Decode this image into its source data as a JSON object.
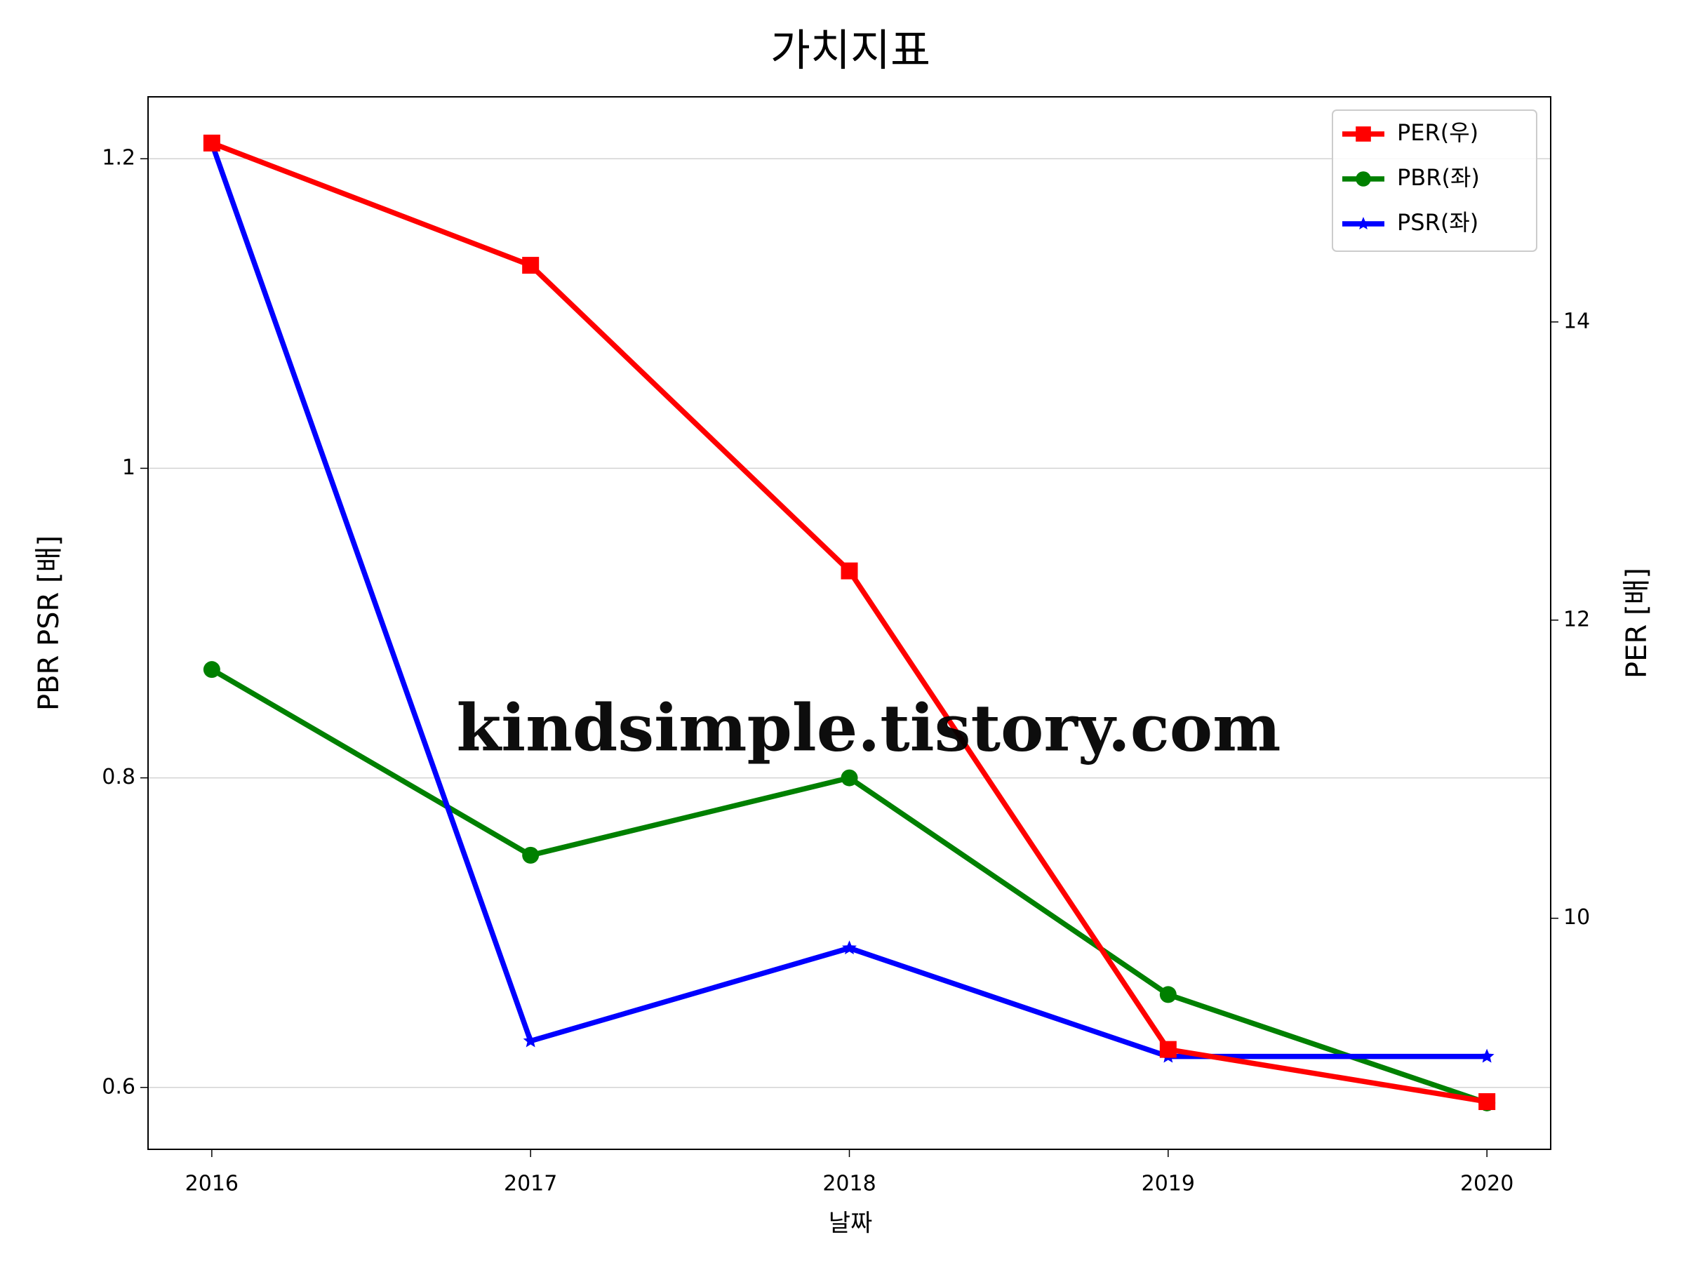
{
  "chart_data": {
    "type": "line",
    "title": "가치지표",
    "x_label": "날짜",
    "y_label": "PBR PSR [배]",
    "y2_label": "PER [배]",
    "y_label_color": "#008000",
    "y2_label_color": "#ff0000",
    "x": [
      2016,
      2017,
      2018,
      2019,
      2020
    ],
    "xlim": [
      2015.8,
      2020.2
    ],
    "xticks": [
      2016,
      2017,
      2018,
      2019,
      2020
    ],
    "ylim": [
      0.56,
      1.24
    ],
    "yticks": [
      0.6,
      0.8,
      1.0,
      1.2
    ],
    "y2lim": [
      8.45,
      15.51
    ],
    "y2ticks": [
      10,
      12,
      14
    ],
    "grid": "y",
    "legend": "upper right",
    "series": [
      {
        "name": "PER(우)",
        "color": "#ff0000",
        "marker": "square",
        "axis": "y2",
        "values": [
          15.2,
          14.38,
          12.33,
          9.12,
          8.77
        ]
      },
      {
        "name": "PBR(좌)",
        "color": "#008000",
        "marker": "circle",
        "values": [
          0.87,
          0.75,
          0.8,
          0.66,
          0.59
        ]
      },
      {
        "name": "PSR(좌)",
        "color": "#0000ff",
        "marker": "star",
        "values": [
          1.21,
          0.63,
          0.69,
          0.62,
          0.62
        ]
      }
    ],
    "annotations": [
      "kindsimple.tistory.com"
    ]
  }
}
